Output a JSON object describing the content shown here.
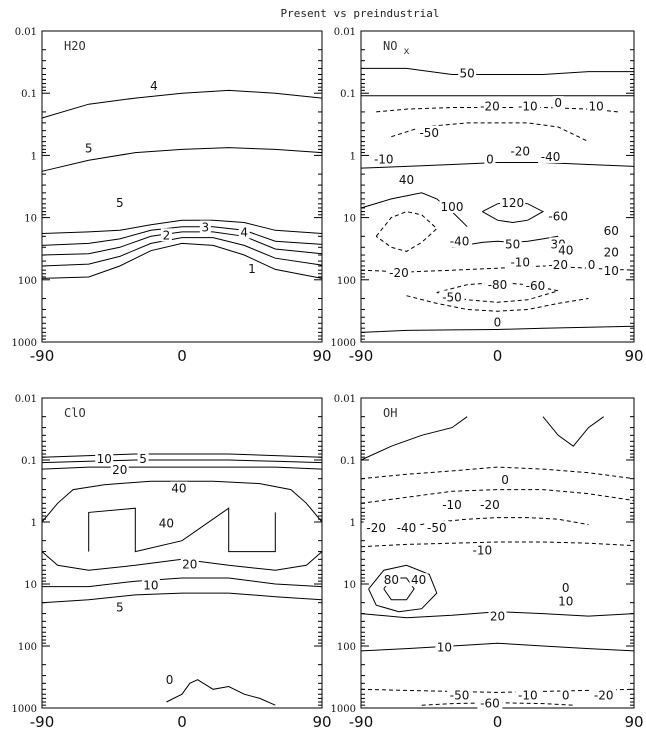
{
  "title": "Present vs preindustrial",
  "chart_data": [
    {
      "type": "contour",
      "panel_label": "H2O",
      "xticks": [
        "-90",
        "0",
        "90"
      ],
      "yticks": [
        "0.01",
        "0.1",
        "1",
        "10",
        "100",
        "1000"
      ],
      "xlim": [
        -90,
        90
      ],
      "ylim": [
        0.01,
        1000
      ],
      "y_scale": "log",
      "y_inverted": true,
      "contour_labels": [
        "4",
        "5",
        "5",
        "3",
        "4",
        "2",
        "1"
      ],
      "contours": [
        {
          "level": 4,
          "style": "solid",
          "x": [
            -90,
            -60,
            -30,
            0,
            30,
            60,
            90
          ],
          "y": [
            0.25,
            0.15,
            0.12,
            0.1,
            0.09,
            0.1,
            0.12
          ]
        },
        {
          "level": 5,
          "style": "solid",
          "x": [
            -90,
            -60,
            -30,
            0,
            30,
            60,
            90
          ],
          "y": [
            1.8,
            1.2,
            0.9,
            0.8,
            0.75,
            0.8,
            0.9
          ]
        },
        {
          "level": 5,
          "style": "solid",
          "x": [
            -90,
            -60,
            -40,
            -20,
            0,
            20,
            40,
            60,
            90
          ],
          "y": [
            18,
            17,
            16,
            13,
            11,
            11,
            12,
            16,
            18
          ]
        },
        {
          "level": 4,
          "style": "solid",
          "x": [
            -90,
            -60,
            -40,
            -20,
            0,
            20,
            40,
            60,
            90
          ],
          "y": [
            28,
            26,
            22,
            16,
            14,
            14,
            16,
            24,
            27
          ]
        },
        {
          "level": 3,
          "style": "solid",
          "x": [
            -90,
            -60,
            -40,
            -20,
            0,
            20,
            40,
            60,
            90
          ],
          "y": [
            40,
            38,
            30,
            20,
            17,
            17,
            20,
            32,
            38
          ]
        },
        {
          "level": 2,
          "style": "solid",
          "x": [
            -90,
            -60,
            -40,
            -20,
            0,
            20,
            40,
            60,
            90
          ],
          "y": [
            60,
            56,
            42,
            26,
            21,
            21,
            28,
            45,
            58
          ]
        },
        {
          "level": 1,
          "style": "solid",
          "x": [
            -90,
            -60,
            -40,
            -20,
            0,
            20,
            40,
            60,
            90
          ],
          "y": [
            95,
            90,
            60,
            34,
            26,
            28,
            40,
            68,
            95
          ]
        }
      ]
    },
    {
      "type": "contour",
      "panel_label": "NO",
      "panel_label_sub": "x",
      "xticks": [
        "-90",
        "0",
        "90"
      ],
      "yticks": [
        "0.01",
        "0.1",
        "1",
        "10",
        "100",
        "1000"
      ],
      "xlim": [
        -90,
        90
      ],
      "ylim": [
        0.01,
        1000
      ],
      "y_scale": "log",
      "y_inverted": true,
      "contour_labels": [
        "50",
        "-20",
        "-10",
        "0",
        "10",
        "-50",
        "-10",
        "0",
        "-20",
        "-40",
        "40",
        "100",
        "120",
        "-60",
        "60",
        "-40",
        "50",
        "30",
        "40",
        "20",
        "-10",
        "-20",
        "0",
        "10",
        "-20",
        "-80",
        "-60",
        "-50",
        "0"
      ],
      "contours": [
        {
          "level": 50,
          "style": "solid",
          "x": [
            -90,
            -60,
            -30,
            0,
            30,
            60,
            90
          ],
          "y": [
            0.04,
            0.04,
            0.05,
            0.05,
            0.05,
            0.045,
            0.045
          ]
        },
        {
          "level": 10,
          "style": "solid",
          "x": [
            -90,
            -60,
            -30,
            0,
            30,
            60,
            90
          ],
          "y": [
            0.11,
            0.11,
            0.11,
            0.11,
            0.11,
            0.11,
            0.11
          ]
        },
        {
          "level": -20,
          "style": "dashed",
          "x": [
            -80,
            -60,
            -30,
            0,
            30,
            60,
            80
          ],
          "y": [
            0.2,
            0.18,
            0.17,
            0.17,
            0.17,
            0.18,
            0.2
          ]
        },
        {
          "level": -50,
          "style": "dashed",
          "x": [
            -70,
            -50,
            -20,
            0,
            20,
            40,
            60
          ],
          "y": [
            0.5,
            0.35,
            0.3,
            0.3,
            0.3,
            0.35,
            0.6
          ]
        },
        {
          "level": 40,
          "style": "solid",
          "x": [
            -90,
            -60,
            -30,
            0,
            30,
            60,
            90
          ],
          "y": [
            1.6,
            1.5,
            1.4,
            1.3,
            1.3,
            1.4,
            1.5
          ]
        },
        {
          "level": 100,
          "style": "solid",
          "x": [
            -90,
            -70,
            -50,
            -40,
            -30,
            -20
          ],
          "y": [
            7,
            5,
            4,
            5,
            8,
            14
          ]
        },
        {
          "level": 120,
          "style": "solid",
          "x": [
            -10,
            0,
            10,
            20,
            30,
            20,
            10,
            0,
            -10
          ],
          "y": [
            8,
            6,
            5.5,
            6,
            8,
            11,
            12,
            11,
            8
          ]
        },
        {
          "level": -40,
          "style": "dashed",
          "x": [
            -80,
            -70,
            -60,
            -50,
            -40,
            -50,
            -60,
            -70,
            -80
          ],
          "y": [
            20,
            10,
            8,
            9,
            15,
            25,
            35,
            30,
            20
          ]
        },
        {
          "level": 50,
          "style": "solid",
          "x": [
            -30,
            -10,
            0,
            10,
            20,
            30,
            40
          ],
          "y": [
            30,
            25,
            24,
            25,
            24,
            22,
            20
          ]
        },
        {
          "level": -20,
          "style": "dashed",
          "x": [
            -90,
            -60,
            -30,
            0,
            30,
            60,
            90
          ],
          "y": [
            70,
            75,
            70,
            65,
            60,
            65,
            70
          ]
        },
        {
          "level": -80,
          "style": "dashed",
          "x": [
            -40,
            -20,
            0,
            20,
            40,
            20,
            0,
            -20,
            -40
          ],
          "y": [
            160,
            120,
            110,
            120,
            150,
            210,
            230,
            210,
            160
          ]
        },
        {
          "level": -50,
          "style": "dashed",
          "x": [
            -60,
            -40,
            -20,
            0,
            20,
            40,
            60
          ],
          "y": [
            180,
            240,
            300,
            320,
            300,
            240,
            200
          ]
        },
        {
          "level": 0,
          "style": "solid",
          "x": [
            -90,
            -60,
            -30,
            0,
            30,
            60,
            90
          ],
          "y": [
            700,
            650,
            640,
            630,
            600,
            580,
            560
          ]
        }
      ]
    },
    {
      "type": "contour",
      "panel_label": "ClO",
      "xticks": [
        "-90",
        "0",
        "90"
      ],
      "yticks": [
        "0.01",
        "0.1",
        "1",
        "10",
        "100",
        "1000"
      ],
      "xlim": [
        -90,
        90
      ],
      "ylim": [
        0.01,
        1000
      ],
      "y_scale": "log",
      "y_inverted": true,
      "contour_labels": [
        "10",
        "5",
        "20",
        "40",
        "40",
        "20",
        "10",
        "5",
        "0"
      ],
      "contours": [
        {
          "level": 5,
          "style": "solid",
          "x": [
            -90,
            -60,
            -30,
            0,
            30,
            60,
            90
          ],
          "y": [
            0.09,
            0.085,
            0.08,
            0.08,
            0.08,
            0.085,
            0.09
          ]
        },
        {
          "level": 10,
          "style": "solid",
          "x": [
            -90,
            -60,
            -30,
            0,
            30,
            60,
            90
          ],
          "y": [
            0.11,
            0.105,
            0.1,
            0.1,
            0.1,
            0.105,
            0.11
          ]
        },
        {
          "level": 20,
          "style": "solid",
          "x": [
            -90,
            -60,
            -30,
            0,
            30,
            60,
            90
          ],
          "y": [
            0.14,
            0.13,
            0.13,
            0.13,
            0.13,
            0.13,
            0.14
          ]
        },
        {
          "level": 40,
          "style": "solid",
          "x": [
            -90,
            -80,
            -70,
            -50,
            -20,
            0,
            20,
            50,
            70,
            80,
            90
          ],
          "y": [
            1,
            0.5,
            0.3,
            0.25,
            0.22,
            0.22,
            0.22,
            0.24,
            0.3,
            0.5,
            1
          ]
        },
        {
          "level": 40,
          "style": "solid",
          "x": [
            -60,
            -60,
            -30,
            -30,
            0,
            30,
            30,
            60,
            60
          ],
          "y": [
            3,
            0.7,
            0.6,
            3,
            2,
            0.6,
            3,
            3,
            0.7
          ]
        },
        {
          "level": 20,
          "style": "solid",
          "x": [
            -90,
            -80,
            -60,
            -30,
            0,
            30,
            60,
            80,
            90
          ],
          "y": [
            3,
            5,
            6,
            5,
            4,
            5,
            6,
            5,
            3
          ]
        },
        {
          "level": 10,
          "style": "solid",
          "x": [
            -90,
            -60,
            -30,
            0,
            30,
            60,
            90
          ],
          "y": [
            11,
            11,
            9,
            8,
            8,
            10,
            11
          ]
        },
        {
          "level": 5,
          "style": "solid",
          "x": [
            -90,
            -60,
            -30,
            0,
            30,
            60,
            90
          ],
          "y": [
            20,
            18,
            15,
            14,
            14,
            16,
            18
          ]
        },
        {
          "level": 0,
          "style": "solid",
          "x": [
            -10,
            0,
            5,
            10,
            20,
            30,
            40,
            50,
            60
          ],
          "y": [
            800,
            600,
            400,
            350,
            500,
            450,
            600,
            700,
            900
          ]
        }
      ]
    },
    {
      "type": "contour",
      "panel_label": "OH",
      "xticks": [
        "-90",
        "0",
        "90"
      ],
      "yticks": [
        "0.01",
        "0.1",
        "1",
        "10",
        "100",
        "1000"
      ],
      "xlim": [
        -90,
        90
      ],
      "ylim": [
        0.01,
        1000
      ],
      "y_scale": "log",
      "y_inverted": true,
      "contour_labels": [
        "0",
        "-10",
        "-20",
        "-20",
        "-40",
        "-50",
        "-10",
        "80",
        "40",
        "0",
        "10",
        "20",
        "10",
        "-50",
        "-10",
        "0",
        "-20",
        "-60"
      ],
      "contours": [
        {
          "level": 0,
          "style": "solid",
          "x": [
            -90,
            -70,
            -50,
            -30,
            -20
          ],
          "y": [
            0.1,
            0.06,
            0.04,
            0.03,
            0.02
          ]
        },
        {
          "level": 0,
          "style": "solid",
          "x": [
            30,
            40,
            50,
            60,
            70
          ],
          "y": [
            0.02,
            0.04,
            0.06,
            0.03,
            0.02
          ]
        },
        {
          "level": 0,
          "style": "dashed",
          "x": [
            -90,
            -60,
            -30,
            0,
            30,
            60,
            90
          ],
          "y": [
            0.2,
            0.17,
            0.15,
            0.13,
            0.14,
            0.16,
            0.2
          ]
        },
        {
          "level": -10,
          "style": "dashed",
          "x": [
            -90,
            -60,
            -30,
            0,
            30,
            60,
            90
          ],
          "y": [
            0.5,
            0.4,
            0.32,
            0.3,
            0.3,
            0.35,
            0.45
          ]
        },
        {
          "level": -50,
          "style": "dashed",
          "x": [
            -60,
            -40,
            -20,
            0,
            20,
            40,
            60
          ],
          "y": [
            1.2,
            1,
            0.9,
            0.85,
            0.85,
            0.9,
            1.1
          ]
        },
        {
          "level": -10,
          "style": "dashed",
          "x": [
            -90,
            -60,
            -30,
            0,
            30,
            60,
            90
          ],
          "y": [
            2.5,
            2.3,
            2.2,
            2.1,
            2.1,
            2.2,
            2.4
          ]
        },
        {
          "level": 80,
          "style": "solid",
          "x": [
            -75,
            -70,
            -60,
            -55,
            -60,
            -70,
            -75
          ],
          "y": [
            12,
            8,
            8,
            12,
            18,
            18,
            12
          ]
        },
        {
          "level": 40,
          "style": "solid",
          "x": [
            -85,
            -75,
            -60,
            -45,
            -40,
            -50,
            -65,
            -80,
            -85
          ],
          "y": [
            12,
            6,
            5,
            7,
            14,
            25,
            28,
            22,
            12
          ]
        },
        {
          "level": 20,
          "style": "solid",
          "x": [
            -90,
            -60,
            -30,
            0,
            30,
            60,
            90
          ],
          "y": [
            30,
            35,
            32,
            28,
            30,
            33,
            30
          ]
        },
        {
          "level": 10,
          "style": "solid",
          "x": [
            -90,
            -60,
            -30,
            0,
            30,
            60,
            90
          ],
          "y": [
            120,
            110,
            100,
            90,
            100,
            110,
            120
          ]
        },
        {
          "level": -10,
          "style": "dashed",
          "x": [
            -90,
            -60,
            -30,
            0,
            30,
            60,
            90
          ],
          "y": [
            500,
            520,
            540,
            560,
            540,
            520,
            500
          ]
        },
        {
          "level": -60,
          "style": "dashed",
          "x": [
            -50,
            -30,
            0,
            30,
            50
          ],
          "y": [
            900,
            850,
            820,
            850,
            900
          ]
        }
      ]
    }
  ]
}
